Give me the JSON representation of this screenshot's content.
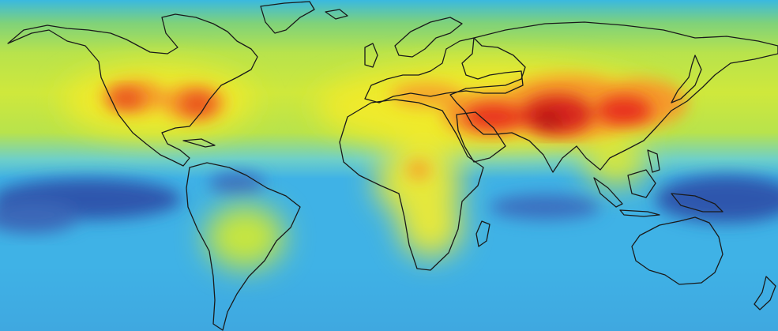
{
  "map": {
    "colors": {
      "ocean_deep": "#2f57ad",
      "ocean": "#3fb2e6",
      "low": "#5fd3d8",
      "mid": "#b8e34c",
      "yellow": "#f0ea2a",
      "orange": "#f59a2a",
      "red": "#e8321e",
      "dark_red": "#c11b1b",
      "coastline": "#1a1a1a"
    }
  }
}
